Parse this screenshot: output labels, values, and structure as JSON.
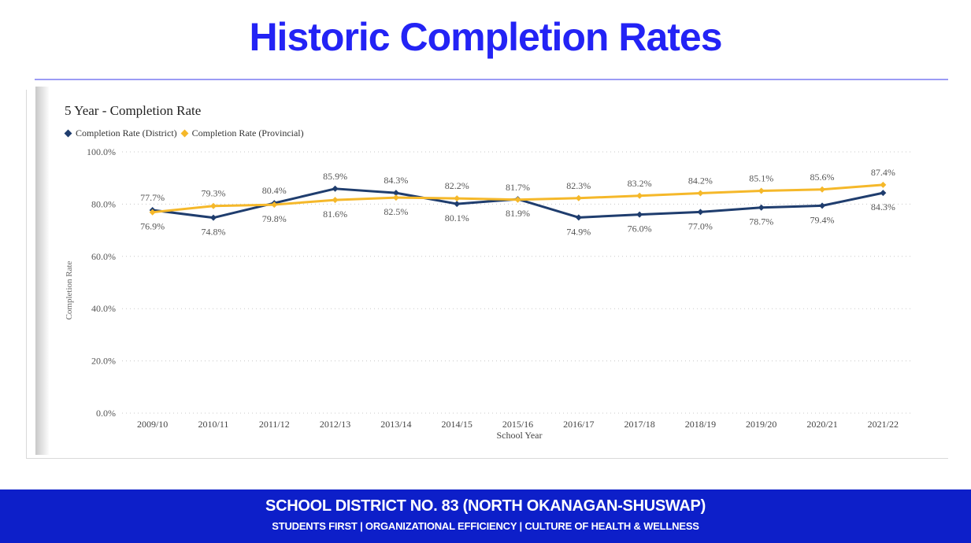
{
  "slide": {
    "title": "Historic Completion Rates"
  },
  "footer": {
    "line1": "SCHOOL DISTRICT NO. 83 (NORTH OKANAGAN-SHUSWAP)",
    "line2": "STUDENTS FIRST | ORGANIZATIONAL EFFICIENCY | CULTURE OF HEALTH & WELLNESS"
  },
  "colors": {
    "title": "#2323f5",
    "footer_bg": "#0d1fc9",
    "district": "#1f3d6e",
    "provincial": "#f5b82a"
  },
  "chart_data": {
    "type": "line",
    "title": "5 Year - Completion Rate",
    "xlabel": "School Year",
    "ylabel": "Completion Rate",
    "ylim": [
      0,
      100
    ],
    "yticks": [
      "0.0%",
      "20.0%",
      "40.0%",
      "60.0%",
      "80.0%",
      "100.0%"
    ],
    "ytick_values": [
      0,
      20,
      40,
      60,
      80,
      100
    ],
    "grid": true,
    "legend_position": "top-left",
    "categories": [
      "2009/10",
      "2010/11",
      "2011/12",
      "2012/13",
      "2013/14",
      "2014/15",
      "2015/16",
      "2016/17",
      "2017/18",
      "2018/19",
      "2019/20",
      "2020/21",
      "2021/22"
    ],
    "series": [
      {
        "name": "Completion Rate (District)",
        "color": "#1f3d6e",
        "values": [
          77.7,
          74.8,
          80.4,
          85.9,
          84.3,
          80.1,
          81.9,
          74.9,
          76.0,
          77.0,
          78.7,
          79.4,
          84.3
        ],
        "labels": [
          "77.7%",
          "74.8%",
          "80.4%",
          "85.9%",
          "84.3%",
          "80.1%",
          "81.9%",
          "74.9%",
          "76.0%",
          "77.0%",
          "78.7%",
          "79.4%",
          "84.3%"
        ]
      },
      {
        "name": "Completion Rate (Provincial)",
        "color": "#f5b82a",
        "values": [
          76.9,
          79.3,
          79.8,
          81.6,
          82.5,
          82.2,
          81.7,
          82.3,
          83.2,
          84.2,
          85.1,
          85.6,
          87.4
        ],
        "labels": [
          "76.9%",
          "79.3%",
          "79.8%",
          "81.6%",
          "82.5%",
          "82.2%",
          "81.7%",
          "82.3%",
          "83.2%",
          "84.2%",
          "85.1%",
          "85.6%",
          "87.4%"
        ]
      }
    ]
  }
}
